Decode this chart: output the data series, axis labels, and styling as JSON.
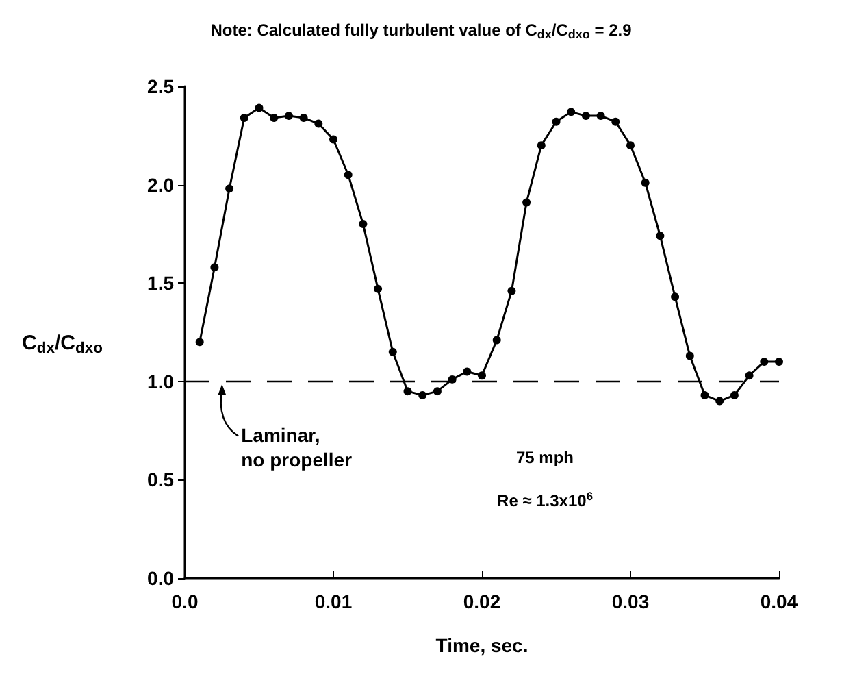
{
  "chart_data": {
    "type": "line",
    "title": "Note: Calculated fully turbulent value of C$_{dx}$/C$_{dxo}$ = 2.9",
    "xlabel": "Time, sec.",
    "ylabel": "C$_{dx}$/C$_{dxo}$",
    "x": [
      0.001,
      0.002,
      0.003,
      0.004,
      0.005,
      0.006,
      0.007,
      0.008,
      0.009,
      0.01,
      0.011,
      0.012,
      0.013,
      0.014,
      0.015,
      0.016,
      0.017,
      0.018,
      0.019,
      0.02,
      0.021,
      0.022,
      0.023,
      0.024,
      0.025,
      0.026,
      0.027,
      0.028,
      0.029,
      0.03,
      0.031,
      0.032,
      0.033,
      0.034,
      0.035,
      0.036,
      0.037,
      0.038,
      0.039,
      0.04
    ],
    "series": [
      {
        "color": "#000000",
        "values": [
          1.2,
          1.58,
          1.98,
          2.34,
          2.39,
          2.34,
          2.35,
          2.34,
          2.31,
          2.23,
          2.05,
          1.8,
          1.47,
          1.15,
          0.95,
          0.93,
          0.95,
          1.01,
          1.05,
          1.03,
          1.21,
          1.46,
          1.91,
          2.2,
          2.32,
          2.37,
          2.35,
          2.35,
          2.32,
          2.2,
          2.01,
          1.74,
          1.43,
          1.13,
          0.93,
          0.9,
          0.93,
          1.03,
          1.1,
          1.1
        ]
      }
    ],
    "xlim": [
      0,
      0.04
    ],
    "xticks": [
      {
        "value": 0,
        "label": "0.0"
      },
      0.01,
      0.02,
      0.03,
      0.04
    ],
    "ylim": [
      0,
      2.5
    ],
    "yticks": [
      {
        "value": 0,
        "label": "0.0"
      },
      0.5,
      {
        "value": 1,
        "label": "1.0"
      },
      1.5,
      {
        "value": 2,
        "label": "2.0"
      },
      2.5
    ],
    "grid": false,
    "marker": "circle",
    "line_style": "solid",
    "ref_lines": [
      {
        "axis": "y",
        "value": 1.0,
        "color": "#000000",
        "line_style": "dashed"
      }
    ],
    "annotations": [
      {
        "text": "Laminar,\nno propeller",
        "x": 0.0025,
        "y": 1.0
      },
      "75 mph",
      "Re ≈ 1.3x10$^{6}$"
    ]
  }
}
